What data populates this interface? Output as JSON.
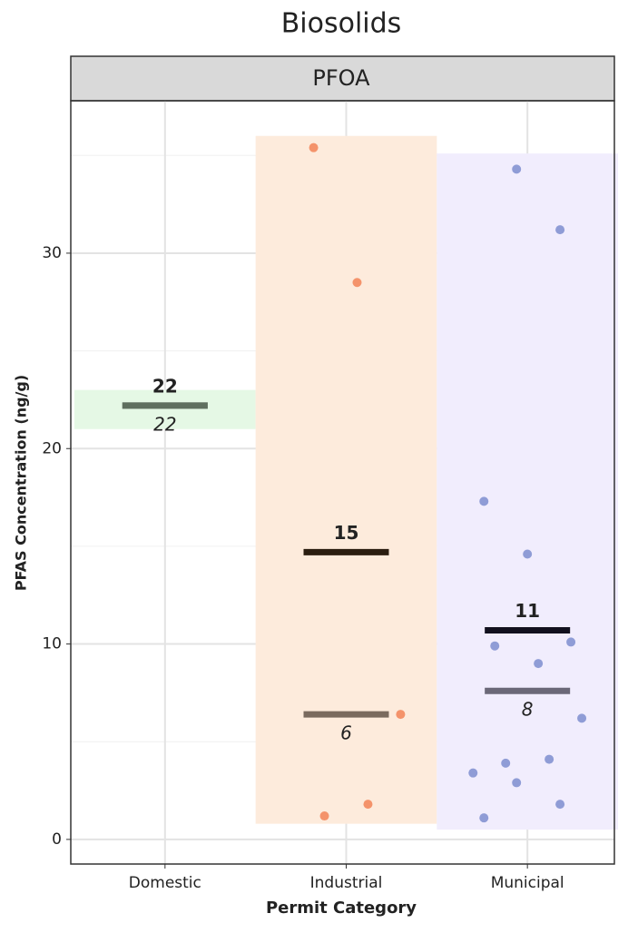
{
  "chart_data": {
    "type": "strip",
    "title": "Biosolids",
    "facet": "PFOA",
    "x_label": "Permit Category",
    "y_label": "PFAS Concentration (ng/g)",
    "categories": [
      "Domestic",
      "Industrial",
      "Municipal"
    ],
    "ylim": [
      -1.26,
      37.8
    ],
    "yticks": [
      0,
      10,
      20,
      30
    ],
    "yminorticks": [
      5,
      15,
      25,
      35
    ],
    "grid": true,
    "groups": [
      {
        "fill": "#e5f8e5",
        "range": [
          21.0,
          23.0
        ],
        "mean": 22.2,
        "mean_label": "22",
        "mean_color": "#5f6f5f",
        "median": 22.2,
        "median_label": "22",
        "median_color": "#6f7a6f",
        "points": []
      },
      {
        "fill": "#fdebdc",
        "color": "#f4936b",
        "range": [
          0.8,
          36.0
        ],
        "mean": 14.7,
        "mean_label": "15",
        "mean_color": "#2b1d10",
        "median": 6.4,
        "median_label": "6",
        "median_color": "#7a6a5e",
        "points": [
          35.4,
          28.5,
          6.4,
          1.2,
          1.8
        ]
      },
      {
        "fill": "#f1edfd",
        "color": "#8f9cd6",
        "range": [
          0.5,
          35.1
        ],
        "mean": 10.7,
        "mean_label": "11",
        "mean_color": "#12101e",
        "median": 7.6,
        "median_label": "8",
        "median_color": "#6b6878",
        "points": [
          34.3,
          31.2,
          17.3,
          14.6,
          10.1,
          9.9,
          9.0,
          6.2,
          3.9,
          4.1,
          3.4,
          2.9,
          1.8,
          1.1
        ]
      }
    ]
  }
}
